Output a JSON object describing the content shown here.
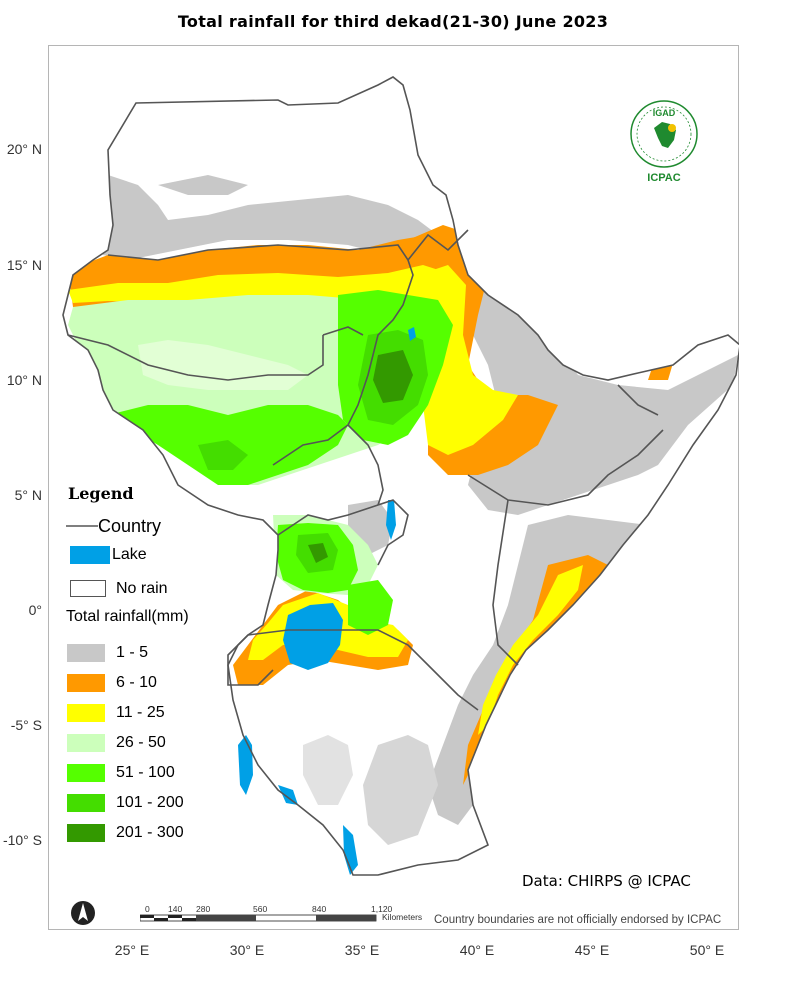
{
  "title": "Total rainfall  for  third dekad(21-30)  June  2023",
  "lat_ticks": [
    "20° N",
    "15° N",
    "10° N",
    "5° N",
    "0°",
    "-5° S",
    "-10° S"
  ],
  "lon_ticks": [
    "25° E",
    "30° E",
    "35° E",
    "40° E",
    "45° E",
    "50° E"
  ],
  "legend": {
    "title": "Legend",
    "country_label": "Country",
    "lake_label": "Lake",
    "norain_label": "No rain",
    "total_label": "Total rainfall(mm)",
    "classes": [
      {
        "label": "1 - 5",
        "color": "#c8c8c8"
      },
      {
        "label": "6 - 10",
        "color": "#ff9900"
      },
      {
        "label": "11 - 25",
        "color": "#ffff00"
      },
      {
        "label": "26 - 50",
        "color": "#ccffbb"
      },
      {
        "label": "51 - 100",
        "color": "#55ff00"
      },
      {
        "label": "101 - 200",
        "color": "#44dd00"
      },
      {
        "label": "201 - 300",
        "color": "#339900"
      }
    ],
    "lake_color": "#00a0e6"
  },
  "logo": {
    "top": "IGAD",
    "bottom": "ICPAC"
  },
  "source": "Data: CHIRPS @ ICPAC",
  "disclaimer": "Country boundaries are not officially endorsed by ICPAC",
  "scale": {
    "labels": [
      "0",
      "140",
      "280",
      "560",
      "840",
      "1,120"
    ],
    "units": "Kilometers"
  }
}
